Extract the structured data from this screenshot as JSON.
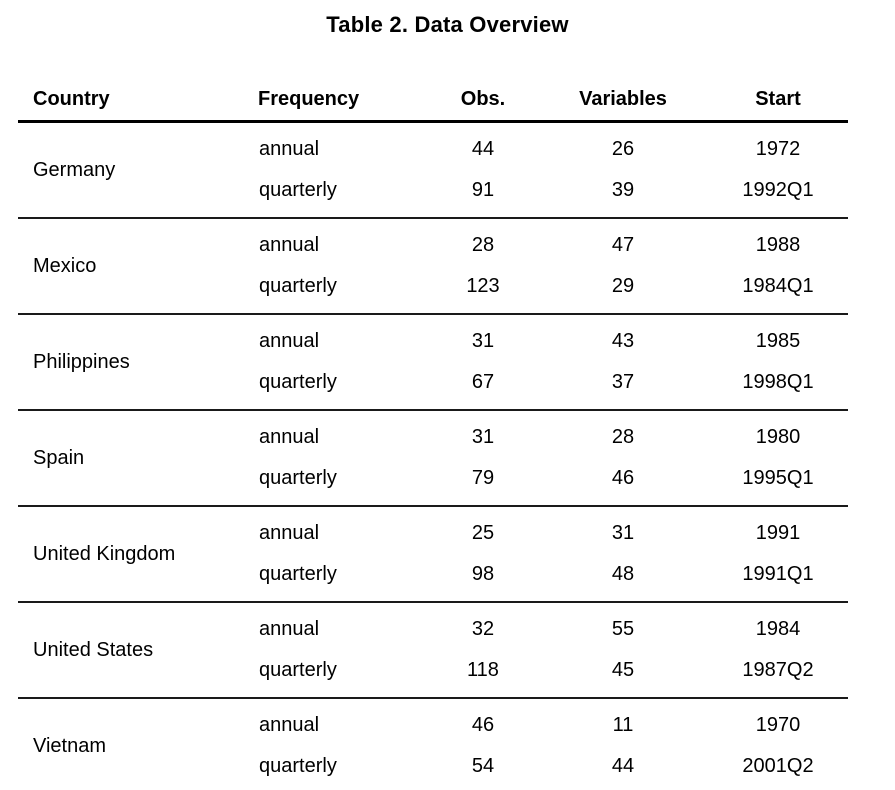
{
  "title": "Table 2. Data Overview",
  "table": {
    "columns": [
      "Country",
      "Frequency",
      "Obs.",
      "Variables",
      "Start"
    ],
    "groups": [
      {
        "country": "Germany",
        "rows": [
          [
            "annual",
            "44",
            "26",
            "1972"
          ],
          [
            "quarterly",
            "91",
            "39",
            "1992Q1"
          ]
        ]
      },
      {
        "country": "Mexico",
        "rows": [
          [
            "annual",
            "28",
            "47",
            "1988"
          ],
          [
            "quarterly",
            "123",
            "29",
            "1984Q1"
          ]
        ]
      },
      {
        "country": "Philippines",
        "rows": [
          [
            "annual",
            "31",
            "43",
            "1985"
          ],
          [
            "quarterly",
            "67",
            "37",
            "1998Q1"
          ]
        ]
      },
      {
        "country": "Spain",
        "rows": [
          [
            "annual",
            "31",
            "28",
            "1980"
          ],
          [
            "quarterly",
            "79",
            "46",
            "1995Q1"
          ]
        ]
      },
      {
        "country": "United Kingdom",
        "rows": [
          [
            "annual",
            "25",
            "31",
            "1991"
          ],
          [
            "quarterly",
            "98",
            "48",
            "1991Q1"
          ]
        ]
      },
      {
        "country": "United States",
        "rows": [
          [
            "annual",
            "32",
            "55",
            "1984"
          ],
          [
            "quarterly",
            "118",
            "45",
            "1987Q2"
          ]
        ]
      },
      {
        "country": "Vietnam",
        "rows": [
          [
            "annual",
            "46",
            "11",
            "1970"
          ],
          [
            "quarterly",
            "54",
            "44",
            "2001Q2"
          ]
        ]
      }
    ]
  },
  "chart_data": {
    "type": "table",
    "title": "Table 2. Data Overview",
    "columns": [
      "Country",
      "Frequency",
      "Obs.",
      "Variables",
      "Start"
    ],
    "rows": [
      [
        "Germany",
        "annual",
        44,
        26,
        "1972"
      ],
      [
        "Germany",
        "quarterly",
        91,
        39,
        "1992Q1"
      ],
      [
        "Mexico",
        "annual",
        28,
        47,
        "1988"
      ],
      [
        "Mexico",
        "quarterly",
        123,
        29,
        "1984Q1"
      ],
      [
        "Philippines",
        "annual",
        31,
        43,
        "1985"
      ],
      [
        "Philippines",
        "quarterly",
        67,
        37,
        "1998Q1"
      ],
      [
        "Spain",
        "annual",
        31,
        28,
        "1980"
      ],
      [
        "Spain",
        "quarterly",
        79,
        46,
        "1995Q1"
      ],
      [
        "United Kingdom",
        "annual",
        25,
        31,
        "1991"
      ],
      [
        "United Kingdom",
        "quarterly",
        98,
        48,
        "1991Q1"
      ],
      [
        "United States",
        "annual",
        32,
        55,
        "1984"
      ],
      [
        "United States",
        "quarterly",
        118,
        45,
        "1987Q2"
      ],
      [
        "Vietnam",
        "annual",
        46,
        11,
        "1970"
      ],
      [
        "Vietnam",
        "quarterly",
        54,
        44,
        "2001Q2"
      ]
    ]
  },
  "colors": {
    "background": "#ffffff",
    "text": "#000000",
    "rule_heavy": "#000000",
    "rule_light": "#1a1a1a"
  }
}
